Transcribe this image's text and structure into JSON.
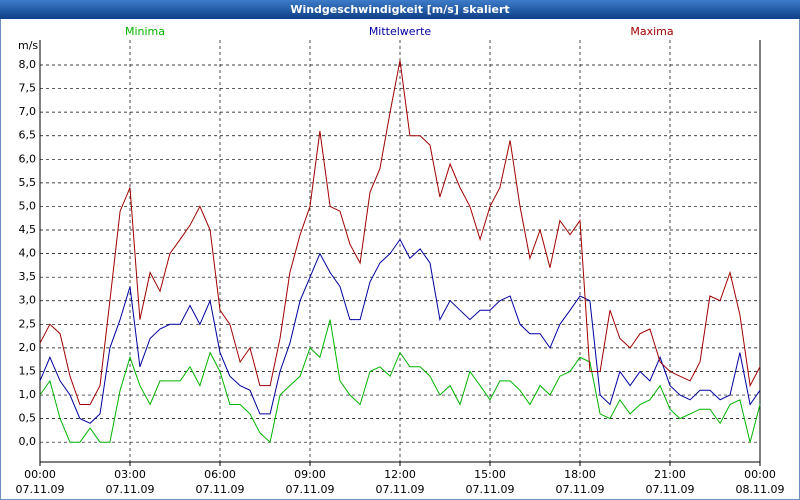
{
  "chart_data": {
    "type": "line",
    "title": "Windgeschwindigkeit [m/s] skaliert",
    "y_label": "m/s",
    "x": [
      0,
      0.33,
      0.67,
      1,
      1.33,
      1.67,
      2,
      2.33,
      2.67,
      3,
      3.33,
      3.67,
      4,
      4.33,
      4.67,
      5,
      5.33,
      5.67,
      6,
      6.33,
      6.67,
      7,
      7.33,
      7.67,
      8,
      8.33,
      8.67,
      9,
      9.33,
      9.67,
      10,
      10.33,
      10.67,
      11,
      11.33,
      11.67,
      12,
      12.33,
      12.67,
      13,
      13.33,
      13.67,
      14,
      14.33,
      14.67,
      15,
      15.33,
      15.67,
      16,
      16.33,
      16.67,
      17,
      17.33,
      17.67,
      18,
      18.33,
      18.67,
      19,
      19.33,
      19.67,
      20,
      20.33,
      20.67,
      21,
      21.33,
      21.67,
      22,
      22.33,
      22.67,
      23,
      23.33,
      23.67,
      24
    ],
    "series": [
      {
        "name": "Minima",
        "color": "#00b400",
        "values": [
          1.0,
          1.3,
          0.5,
          0.0,
          0.0,
          0.3,
          0.0,
          0.0,
          1.1,
          1.8,
          1.2,
          0.8,
          1.3,
          1.3,
          1.3,
          1.6,
          1.2,
          1.9,
          1.5,
          0.8,
          0.8,
          0.6,
          0.2,
          0.0,
          1.0,
          1.2,
          1.4,
          2.0,
          1.8,
          2.6,
          1.3,
          1.0,
          0.8,
          1.5,
          1.6,
          1.4,
          1.9,
          1.6,
          1.6,
          1.4,
          1.0,
          1.2,
          0.8,
          1.5,
          1.2,
          0.9,
          1.3,
          1.3,
          1.1,
          0.8,
          1.2,
          1.0,
          1.4,
          1.5,
          1.8,
          1.7,
          0.6,
          0.5,
          0.9,
          0.6,
          0.8,
          0.9,
          1.2,
          0.7,
          0.5,
          0.6,
          0.7,
          0.7,
          0.4,
          0.8,
          0.9,
          0.0,
          0.8
        ]
      },
      {
        "name": "Mittelwerte",
        "color": "#0000a0",
        "values": [
          1.3,
          1.8,
          1.3,
          1.0,
          0.5,
          0.4,
          0.6,
          2.0,
          2.6,
          3.3,
          1.6,
          2.2,
          2.4,
          2.5,
          2.5,
          2.9,
          2.5,
          3.0,
          1.9,
          1.4,
          1.2,
          1.1,
          0.6,
          0.6,
          1.5,
          2.1,
          3.0,
          3.5,
          4.0,
          3.6,
          3.3,
          2.6,
          2.6,
          3.4,
          3.8,
          4.0,
          4.3,
          3.9,
          4.1,
          3.8,
          2.6,
          3.0,
          2.8,
          2.6,
          2.8,
          2.8,
          3.0,
          3.1,
          2.5,
          2.3,
          2.3,
          2.0,
          2.5,
          2.8,
          3.1,
          3.0,
          1.0,
          0.8,
          1.5,
          1.2,
          1.5,
          1.3,
          1.8,
          1.2,
          1.0,
          0.9,
          1.1,
          1.1,
          0.9,
          1.0,
          1.9,
          0.8,
          1.1
        ]
      },
      {
        "name": "Maxima",
        "color": "#a00000",
        "values": [
          2.1,
          2.5,
          2.3,
          1.4,
          0.8,
          0.8,
          1.2,
          3.0,
          4.9,
          5.4,
          2.6,
          3.6,
          3.2,
          4.0,
          4.3,
          4.6,
          5.0,
          4.5,
          2.8,
          2.5,
          1.7,
          2.0,
          1.2,
          1.2,
          2.2,
          3.6,
          4.4,
          5.0,
          6.6,
          5.0,
          4.9,
          4.2,
          3.8,
          5.3,
          5.8,
          7.0,
          8.1,
          6.5,
          6.5,
          6.3,
          5.2,
          5.9,
          5.4,
          5.0,
          4.3,
          5.0,
          5.4,
          6.4,
          5.0,
          3.9,
          4.5,
          3.7,
          4.7,
          4.4,
          4.7,
          1.5,
          1.5,
          2.8,
          2.2,
          2.0,
          2.3,
          2.4,
          1.7,
          1.5,
          1.4,
          1.3,
          1.7,
          3.1,
          3.0,
          3.6,
          2.7,
          1.2,
          1.6
        ]
      }
    ],
    "xlim": [
      0,
      24
    ],
    "xticks": [
      {
        "value": 0,
        "label": "00:00"
      },
      {
        "value": 3,
        "label": "03:00"
      },
      {
        "value": 6,
        "label": "06:00"
      },
      {
        "value": 9,
        "label": "09:00"
      },
      {
        "value": 12,
        "label": "12:00"
      },
      {
        "value": 15,
        "label": "15:00"
      },
      {
        "value": 18,
        "label": "18:00"
      },
      {
        "value": 21,
        "label": "21:00"
      },
      {
        "value": 24,
        "label": "00:00"
      }
    ],
    "xtick_dates": [
      "07.11.09",
      "07.11.09",
      "07.11.09",
      "07.11.09",
      "07.11.09",
      "07.11.09",
      "07.11.09",
      "07.11.09",
      "08.11.09"
    ],
    "ylim": [
      -0.42,
      8.53
    ],
    "yticks": [
      {
        "value": 0,
        "label": "0,0"
      },
      {
        "value": 0.5,
        "label": "0,5"
      },
      {
        "value": 1,
        "label": "1,0"
      },
      {
        "value": 1.5,
        "label": "1,5"
      },
      {
        "value": 2,
        "label": "2,0"
      },
      {
        "value": 2.5,
        "label": "2,5"
      },
      {
        "value": 3,
        "label": "3,0"
      },
      {
        "value": 3.5,
        "label": "3,5"
      },
      {
        "value": 4,
        "label": "4,0"
      },
      {
        "value": 4.5,
        "label": "4,5"
      },
      {
        "value": 5,
        "label": "5,0"
      },
      {
        "value": 5.5,
        "label": "5,5"
      },
      {
        "value": 6,
        "label": "6,0"
      },
      {
        "value": 6.5,
        "label": "6,5"
      },
      {
        "value": 7,
        "label": "7,0"
      },
      {
        "value": 7.5,
        "label": "7,5"
      },
      {
        "value": 8,
        "label": "8,0"
      }
    ],
    "grid": true
  }
}
